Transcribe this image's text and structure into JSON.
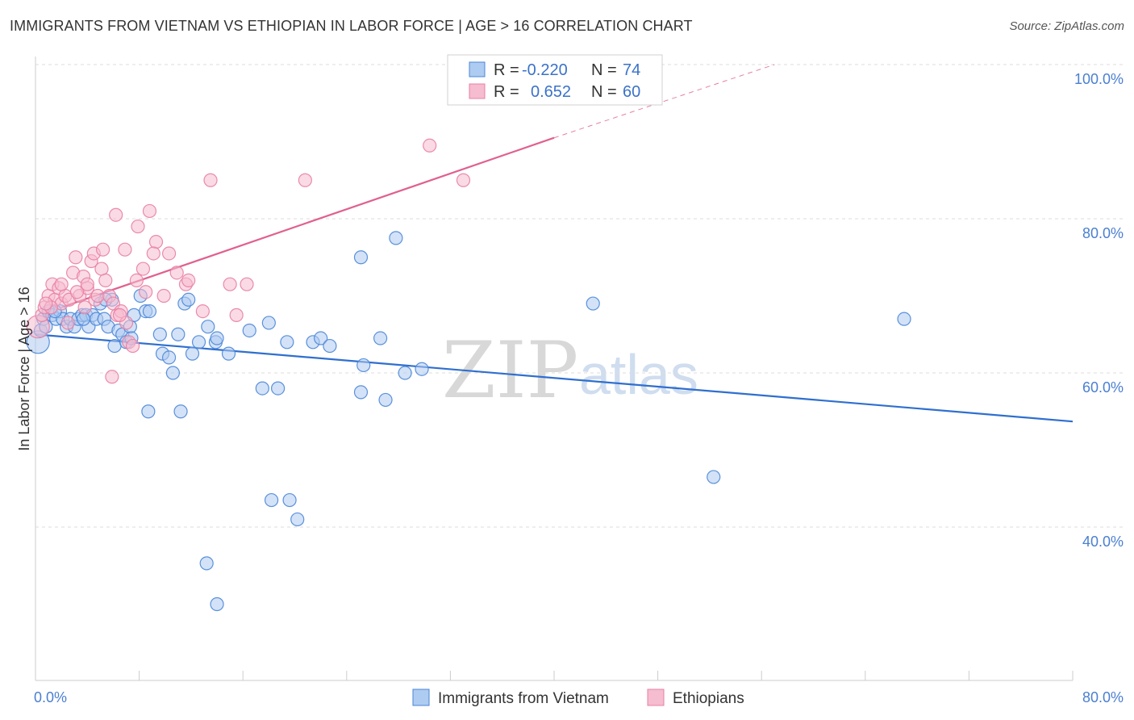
{
  "header": {
    "title": "IMMIGRANTS FROM VIETNAM VS ETHIOPIAN IN LABOR FORCE | AGE > 16 CORRELATION CHART",
    "source": "Source: ZipAtlas.com"
  },
  "watermark": {
    "zip": "ZIP",
    "atlas": "atlas"
  },
  "colors": {
    "blue": "#4a86d8",
    "blue_fill": "#aecbf1",
    "blue_line": "#2f6fcf",
    "pink": "#e87fa3",
    "pink_fill": "#f6bcd0",
    "pink_line": "#e0608f",
    "grid": "#dddddd",
    "tick_text": "#4a7fd1"
  },
  "chart_data": {
    "type": "scatter",
    "title": "IMMIGRANTS FROM VIETNAM VS ETHIOPIAN IN LABOR FORCE | AGE > 16 CORRELATION CHART",
    "ylabel": "In Labor Force | Age > 16",
    "xlim": [
      0,
      80
    ],
    "ylim": [
      20,
      102
    ],
    "x_tick_labels": [
      "0.0%",
      "80.0%"
    ],
    "y_ticks": [
      {
        "value": 40,
        "label": "40.0%"
      },
      {
        "value": 60,
        "label": "60.0%"
      },
      {
        "value": 80,
        "label": "80.0%"
      },
      {
        "value": 100,
        "label": "100.0%"
      }
    ],
    "grid": true,
    "legend_position": "top-center",
    "stats": [
      {
        "series": "Immigrants from Vietnam",
        "r_label": "R =",
        "r": "-0.220",
        "n_label": "N =",
        "n": "74"
      },
      {
        "series": "Ethiopians",
        "r_label": "R =",
        "r": "0.652",
        "n_label": "N =",
        "n": "60"
      }
    ],
    "series": [
      {
        "name": "Immigrants from Vietnam",
        "color": "#4a86d8",
        "trend": {
          "x0": 0,
          "y0": 65.0,
          "x1": 80,
          "y1": 53.7,
          "dashed_to": null
        },
        "points": [
          [
            0.2,
            64.0
          ],
          [
            0.4,
            65.5
          ],
          [
            0.6,
            67.0
          ],
          [
            0.8,
            66.0
          ],
          [
            1.0,
            68.0
          ],
          [
            1.3,
            67.5
          ],
          [
            1.6,
            67.0
          ],
          [
            1.9,
            68.0
          ],
          [
            2.1,
            67.0
          ],
          [
            2.4,
            66.0
          ],
          [
            2.7,
            67.0
          ],
          [
            3.0,
            66.0
          ],
          [
            3.3,
            67.0
          ],
          [
            3.6,
            67.5
          ],
          [
            3.9,
            67.5
          ],
          [
            4.1,
            66.0
          ],
          [
            4.4,
            67.5
          ],
          [
            4.7,
            67.0
          ],
          [
            5.0,
            69.0
          ],
          [
            5.3,
            67.0
          ],
          [
            5.6,
            66.0
          ],
          [
            5.9,
            69.5
          ],
          [
            6.1,
            63.5
          ],
          [
            6.4,
            65.5
          ],
          [
            6.7,
            65.0
          ],
          [
            7.0,
            64.0
          ],
          [
            7.3,
            66.0
          ],
          [
            7.6,
            67.5
          ],
          [
            8.1,
            70.0
          ],
          [
            8.5,
            68.0
          ],
          [
            8.8,
            68.0
          ],
          [
            9.6,
            65.0
          ],
          [
            9.8,
            62.5
          ],
          [
            10.3,
            62.0
          ],
          [
            10.6,
            60.0
          ],
          [
            11.0,
            65.0
          ],
          [
            11.5,
            69.0
          ],
          [
            11.8,
            69.5
          ],
          [
            12.1,
            62.5
          ],
          [
            12.6,
            64.0
          ],
          [
            13.3,
            66.0
          ],
          [
            13.9,
            64.0
          ],
          [
            14.0,
            64.5
          ],
          [
            14.9,
            62.5
          ],
          [
            16.5,
            65.5
          ],
          [
            17.5,
            58.0
          ],
          [
            18.0,
            66.5
          ],
          [
            18.7,
            58.0
          ],
          [
            19.4,
            64.0
          ],
          [
            21.4,
            64.0
          ],
          [
            22.0,
            64.5
          ],
          [
            22.7,
            63.5
          ],
          [
            25.1,
            57.5
          ],
          [
            25.3,
            61.0
          ],
          [
            26.6,
            64.5
          ],
          [
            27.0,
            56.5
          ],
          [
            28.5,
            60.0
          ],
          [
            29.8,
            60.5
          ],
          [
            11.2,
            55.0
          ],
          [
            13.2,
            35.3
          ],
          [
            14.0,
            30.0
          ],
          [
            18.2,
            43.5
          ],
          [
            19.6,
            43.5
          ],
          [
            20.2,
            41.0
          ],
          [
            25.1,
            75.0
          ],
          [
            27.8,
            77.5
          ],
          [
            43.0,
            69.0
          ],
          [
            52.3,
            46.5
          ],
          [
            67.0,
            67.0
          ],
          [
            8.7,
            55.0
          ],
          [
            5.4,
            69.5
          ],
          [
            1.5,
            68.0
          ],
          [
            3.7,
            67.0
          ],
          [
            7.4,
            64.5
          ]
        ]
      },
      {
        "name": "Ethiopians",
        "color": "#e87fa3",
        "trend": {
          "x0": 2.0,
          "y0": 68.5,
          "x1": 40,
          "y1": 90.5,
          "dashed_to": {
            "x": 57,
            "y": 100.0
          }
        },
        "points": [
          [
            0.2,
            66.0
          ],
          [
            0.5,
            67.5
          ],
          [
            0.7,
            68.5
          ],
          [
            1.0,
            70.0
          ],
          [
            1.3,
            71.5
          ],
          [
            1.5,
            69.5
          ],
          [
            1.8,
            71.0
          ],
          [
            2.0,
            69.0
          ],
          [
            2.3,
            70.0
          ],
          [
            2.6,
            69.5
          ],
          [
            2.9,
            73.0
          ],
          [
            3.1,
            75.0
          ],
          [
            3.4,
            70.0
          ],
          [
            3.7,
            72.5
          ],
          [
            4.0,
            71.0
          ],
          [
            4.3,
            74.5
          ],
          [
            4.6,
            69.5
          ],
          [
            4.8,
            70.0
          ],
          [
            5.1,
            73.5
          ],
          [
            5.4,
            72.0
          ],
          [
            5.7,
            70.0
          ],
          [
            6.0,
            69.0
          ],
          [
            6.3,
            67.5
          ],
          [
            6.6,
            68.0
          ],
          [
            6.9,
            76.0
          ],
          [
            7.2,
            64.0
          ],
          [
            7.5,
            63.5
          ],
          [
            7.8,
            72.0
          ],
          [
            8.3,
            73.5
          ],
          [
            8.8,
            81.0
          ],
          [
            9.3,
            77.0
          ],
          [
            9.9,
            70.0
          ],
          [
            10.3,
            75.5
          ],
          [
            10.9,
            73.0
          ],
          [
            11.6,
            71.5
          ],
          [
            12.9,
            68.0
          ],
          [
            13.5,
            85.0
          ],
          [
            15.0,
            71.5
          ],
          [
            16.3,
            71.5
          ],
          [
            20.8,
            85.0
          ],
          [
            30.4,
            89.5
          ],
          [
            33.0,
            85.0
          ],
          [
            6.2,
            80.5
          ],
          [
            7.9,
            79.0
          ],
          [
            9.1,
            75.5
          ],
          [
            4.5,
            75.5
          ],
          [
            3.2,
            70.5
          ],
          [
            2.0,
            71.5
          ],
          [
            1.2,
            68.5
          ],
          [
            0.8,
            69.0
          ],
          [
            5.9,
            59.5
          ],
          [
            7.0,
            66.5
          ],
          [
            8.5,
            70.5
          ],
          [
            6.5,
            67.5
          ],
          [
            5.2,
            76.0
          ],
          [
            4.0,
            71.5
          ],
          [
            11.8,
            72.0
          ],
          [
            15.5,
            67.5
          ],
          [
            2.5,
            66.5
          ],
          [
            3.8,
            68.5
          ]
        ]
      }
    ],
    "bottom_legend": [
      "Immigrants from Vietnam",
      "Ethiopians"
    ]
  }
}
